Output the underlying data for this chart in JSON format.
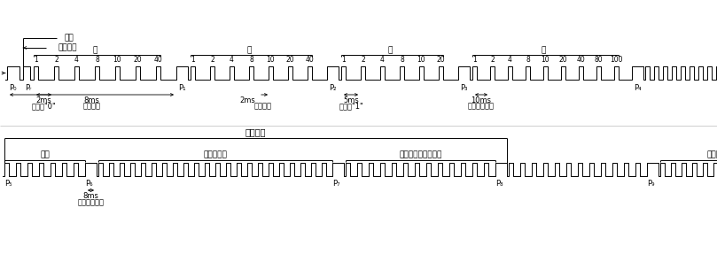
{
  "bg_color": "#ffffff",
  "line_color": "#000000",
  "top_row": {
    "miao_bits": [
      "1",
      "2",
      "4",
      "8",
      "10",
      "20",
      "40"
    ],
    "fen_bits": [
      "1",
      "2",
      "4",
      "8",
      "10",
      "20",
      "40"
    ],
    "shi_bits": [
      "1",
      "2",
      "4",
      "8",
      "10",
      "20"
    ],
    "tian_bits": [
      "1",
      "2",
      "4",
      "8",
      "10",
      "20",
      "40",
      "80",
      "100"
    ]
  },
  "bot_row": {}
}
